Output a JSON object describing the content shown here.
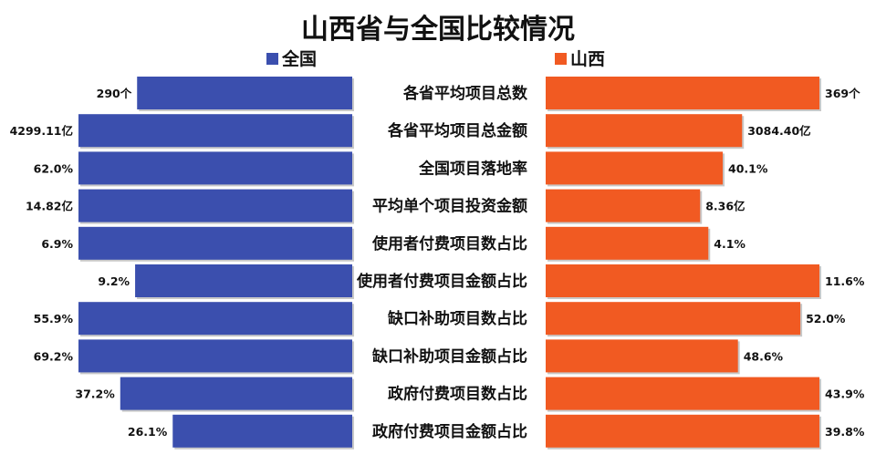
{
  "chart_data": {
    "type": "bar",
    "orientation": "horizontal-butterfly",
    "title": "山西省与全国比较情况",
    "legend_placement": "top",
    "grid": false,
    "categories": [
      "各省平均项目总数",
      "各省平均项目总金额",
      "全国项目落地率",
      "平均单个项目投资金额",
      "使用者付费项目数占比",
      "使用者付费项目金额占比",
      "缺口补助项目数占比",
      "缺口补助项目金额占比",
      "政府付费项目数占比",
      "政府付费项目金额占比"
    ],
    "series": [
      {
        "name": "全国",
        "color": "#3b4fae",
        "side": "left",
        "values": [
          290,
          4299.11,
          62.0,
          14.82,
          6.9,
          9.2,
          55.9,
          69.2,
          37.2,
          26.1
        ],
        "labels": [
          "290个",
          "4299.11亿",
          "62.0%",
          "14.82亿",
          "6.9%",
          "9.2%",
          "55.9%",
          "69.2%",
          "37.2%",
          "26.1%"
        ]
      },
      {
        "name": "山西",
        "color": "#f15a22",
        "side": "right",
        "values": [
          369,
          3084.4,
          40.1,
          8.36,
          4.1,
          11.6,
          52.0,
          48.6,
          43.9,
          39.8
        ],
        "labels": [
          "369个",
          "3084.40亿",
          "40.1%",
          "8.36亿",
          "4.1%",
          "11.6%",
          "52.0%",
          "48.6%",
          "43.9%",
          "39.8%"
        ]
      }
    ]
  }
}
